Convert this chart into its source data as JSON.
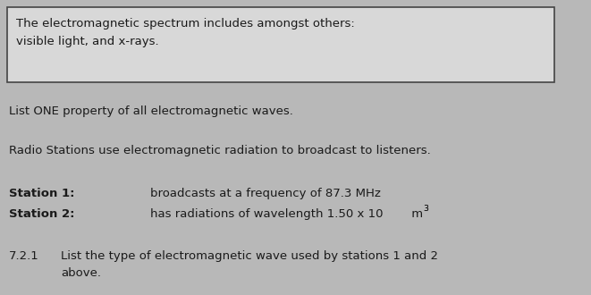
{
  "background_color": "#b8b8b8",
  "box_text_line1": "The electromagnetic spectrum includes amongst others:",
  "box_text_line2": "visible light, and x-rays.",
  "box_bg": "#d8d8d8",
  "box_border": "#444444",
  "line1": "List ONE property of all electromagnetic waves.",
  "line2": "Radio Stations use electromagnetic radiation to broadcast to listeners.",
  "line3_bold": "Station 1: ",
  "line3_normal": "broadcasts at a frequency of 87.3 MHz",
  "line4_bold": "Station 2: ",
  "line4_normal": "has radiations of wavelength 1.50 x 10",
  "line4_super": "3",
  "line4_unit": " m",
  "line5_num": "7.2.1",
  "line5_text_a": "List the type of electromagnetic wave used by stations 1 and 2",
  "line5_text_b": "above.",
  "font_size": 9.5,
  "text_color": "#1a1a1a",
  "figw": 6.61,
  "figh": 3.3,
  "dpi": 100
}
